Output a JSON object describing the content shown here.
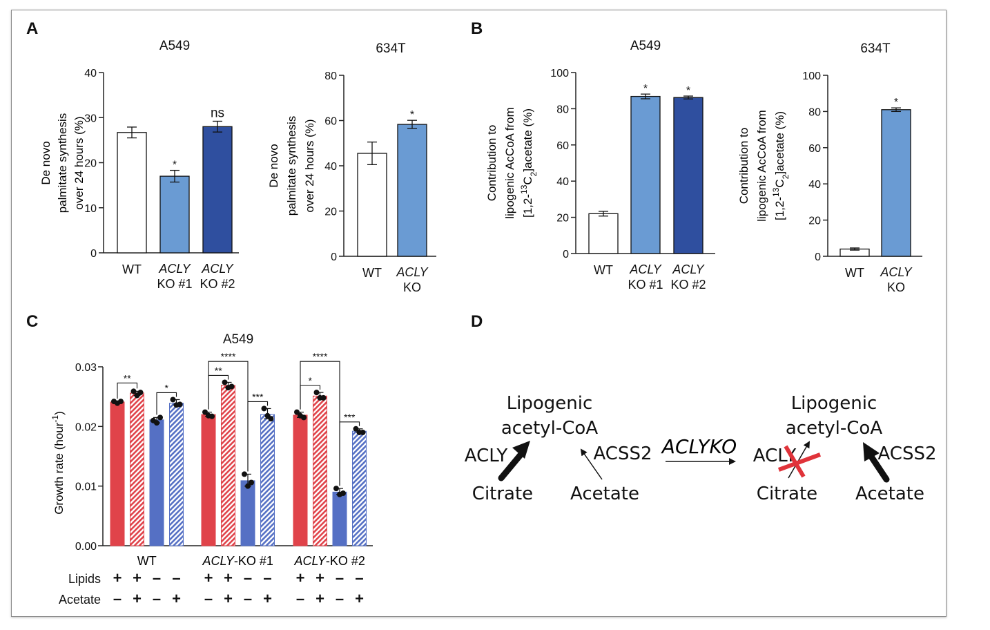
{
  "chart_data": [
    {
      "panel": "A",
      "type": "bar",
      "title": "A549",
      "ylabel_lines": [
        "De novo",
        "palmitate synthesis",
        "over 24 hours (%)"
      ],
      "ylim": [
        0,
        40
      ],
      "yticks": [
        "0",
        "10",
        "20",
        "30",
        "40"
      ],
      "categories": [
        [
          "WT"
        ],
        [
          "ACLY",
          "KO #1"
        ],
        [
          "ACLY",
          "KO #2"
        ]
      ],
      "values": [
        26.7,
        17.0,
        28.0
      ],
      "errors": [
        1.2,
        1.3,
        1.2
      ],
      "annotations": [
        "",
        "*",
        "ns"
      ],
      "colors": [
        "#ffffff",
        "#6a9bd3",
        "#2f4f9f"
      ]
    },
    {
      "panel": "A",
      "type": "bar",
      "title": "634T",
      "ylabel_lines": [
        "De novo",
        "palmitate synthesis",
        "over 24 hours (%)"
      ],
      "ylim": [
        0,
        80
      ],
      "yticks": [
        "0",
        "20",
        "40",
        "60",
        "80"
      ],
      "categories": [
        [
          "WT"
        ],
        [
          "ACLY",
          "KO"
        ]
      ],
      "values": [
        45.5,
        58.3
      ],
      "errors": [
        5.0,
        1.8
      ],
      "annotations": [
        "",
        "*"
      ],
      "colors": [
        "#ffffff",
        "#6a9bd3"
      ]
    },
    {
      "panel": "B",
      "type": "bar",
      "title": "A549",
      "ylabel_lines": [
        "Contribution to",
        "lipogenic AcCoA from",
        "[1,2-13C2]acetate (%)"
      ],
      "ylim": [
        0,
        100
      ],
      "yticks": [
        "0",
        "20",
        "40",
        "60",
        "80",
        "100"
      ],
      "categories": [
        [
          "WT"
        ],
        [
          "ACLY",
          "KO #1"
        ],
        [
          "ACLY",
          "KO #2"
        ]
      ],
      "values": [
        22.0,
        86.8,
        86.2
      ],
      "errors": [
        1.3,
        1.3,
        0.8
      ],
      "annotations": [
        "",
        "*",
        "*"
      ],
      "colors": [
        "#ffffff",
        "#6a9bd3",
        "#2f4f9f"
      ]
    },
    {
      "panel": "B",
      "type": "bar",
      "title": "634T",
      "ylabel_lines": [
        "Contribution to",
        "lipogenic AcCoA from",
        "[1,2-13C2]acetate (%)"
      ],
      "ylim": [
        0,
        100
      ],
      "yticks": [
        "0",
        "20",
        "40",
        "60",
        "80",
        "100"
      ],
      "categories": [
        [
          "WT"
        ],
        [
          "ACLY",
          "KO"
        ]
      ],
      "values": [
        4.0,
        81.0
      ],
      "errors": [
        0.6,
        1.0
      ],
      "annotations": [
        "",
        "*"
      ],
      "colors": [
        "#ffffff",
        "#6a9bd3"
      ]
    },
    {
      "panel": "C",
      "type": "bar",
      "title": "A549",
      "ylabel": "Growth rate (hour-1)",
      "ylim": [
        0,
        0.03
      ],
      "yticks": [
        "0.00",
        "0.01",
        "0.02",
        "0.03"
      ],
      "groups": [
        {
          "label": [
            "",
            "WT"
          ],
          "values": [
            0.0241,
            0.0256,
            0.0211,
            0.0239
          ],
          "points": [
            [
              0.0242,
              0.0239,
              0.0242
            ],
            [
              0.0259,
              0.0252,
              0.0257
            ],
            [
              0.021,
              0.0206,
              0.0215
            ],
            [
              0.0245,
              0.0236,
              0.0237
            ]
          ]
        },
        {
          "label": [
            "ACLY",
            "-KO #1"
          ],
          "values": [
            0.022,
            0.0269,
            0.0109,
            0.022
          ],
          "points": [
            [
              0.0224,
              0.0218,
              0.0217
            ],
            [
              0.0274,
              0.0265,
              0.0267
            ],
            [
              0.012,
              0.01,
              0.0106
            ],
            [
              0.023,
              0.0218,
              0.0213
            ]
          ]
        },
        {
          "label": [
            "ACLY",
            "-KO #2"
          ],
          "values": [
            0.0219,
            0.0251,
            0.009,
            0.0192
          ],
          "points": [
            [
              0.0224,
              0.0218,
              0.0215
            ],
            [
              0.0257,
              0.0248,
              0.0248
            ],
            [
              0.0096,
              0.0086,
              0.0088
            ],
            [
              0.0196,
              0.019,
              0.019
            ]
          ]
        }
      ],
      "bar_styles": [
        "solid-red",
        "hatched-red",
        "solid-blue",
        "hatched-blue"
      ],
      "colors": {
        "red": "#e0434a",
        "blue": "#5570c4"
      },
      "significance": [
        {
          "group": 0,
          "bars": [
            0,
            1
          ],
          "label": "**"
        },
        {
          "group": 0,
          "bars": [
            2,
            3
          ],
          "label": "*"
        },
        {
          "group": 1,
          "bars": [
            0,
            1
          ],
          "label": "**"
        },
        {
          "group": 1,
          "bars": [
            0,
            2
          ],
          "label": "****"
        },
        {
          "group": 1,
          "bars": [
            2,
            3
          ],
          "label": "***"
        },
        {
          "group": 2,
          "bars": [
            0,
            1
          ],
          "label": "*"
        },
        {
          "group": 2,
          "bars": [
            0,
            2
          ],
          "label": "****"
        },
        {
          "group": 2,
          "bars": [
            2,
            3
          ],
          "label": "***"
        }
      ],
      "condition_rows": [
        {
          "name": "Lipids",
          "values": [
            "+",
            "+",
            "–",
            "–"
          ]
        },
        {
          "name": "Acetate",
          "values": [
            "–",
            "+",
            "–",
            "+"
          ]
        }
      ]
    }
  ],
  "panel_labels": [
    "A",
    "B",
    "C",
    "D"
  ],
  "diagram": {
    "left": {
      "product_line1": "Lipogenic",
      "product_line2": "acetyl-CoA",
      "enzyme1": "ACLY",
      "enzyme2": "ACSS2",
      "substrate1": "Citrate",
      "substrate2": "Acetate"
    },
    "transition": "ACLYKO",
    "right": {
      "product_line1": "Lipogenic",
      "product_line2": "acetyl-CoA",
      "enzyme1": "ACLY",
      "enzyme2": "ACSS2",
      "substrate1": "Citrate",
      "substrate2": "Acetate"
    },
    "colors": {
      "arrow": "#111111",
      "cross": "#e0333a"
    }
  }
}
